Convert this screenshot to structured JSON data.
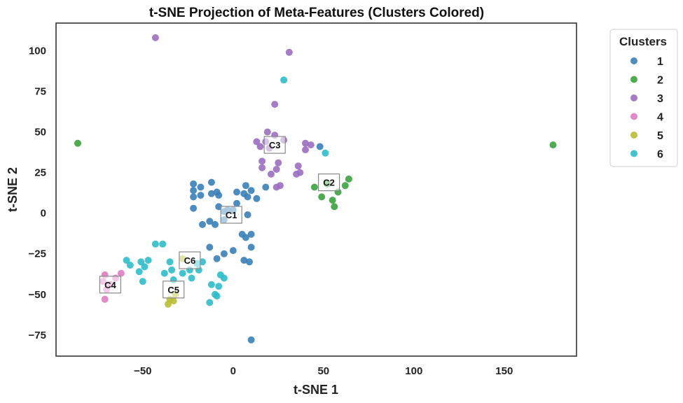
{
  "chart_data": {
    "type": "scatter",
    "title": "t-SNE Projection of Meta-Features (Clusters Colored)",
    "xlabel": "t-SNE 1",
    "ylabel": "t-SNE 2",
    "xlim": [
      -98,
      190
    ],
    "ylim": [
      -88,
      117
    ],
    "xticks": [
      -50,
      0,
      50,
      100,
      150
    ],
    "yticks": [
      -75,
      -50,
      -25,
      0,
      25,
      50,
      75,
      100
    ],
    "grid": false,
    "legend": {
      "title": "Clusters",
      "position": "outside-top-right"
    },
    "series": [
      {
        "name": "1",
        "color": "#3a7fb8",
        "points": [
          [
            -22,
            18
          ],
          [
            -22,
            14
          ],
          [
            -22,
            10
          ],
          [
            -22,
            3
          ],
          [
            -18,
            16
          ],
          [
            -18,
            11
          ],
          [
            -12,
            19
          ],
          [
            -12,
            12
          ],
          [
            -9,
            13
          ],
          [
            -8,
            11
          ],
          [
            -8,
            4
          ],
          [
            -17,
            -7
          ],
          [
            -13,
            -5
          ],
          [
            -10,
            -7
          ],
          [
            -5,
            1
          ],
          [
            -5,
            -4
          ],
          [
            -3,
            2
          ],
          [
            0,
            2
          ],
          [
            2,
            13
          ],
          [
            2,
            6
          ],
          [
            6,
            12
          ],
          [
            7,
            17
          ],
          [
            8,
            10
          ],
          [
            10,
            14
          ],
          [
            13,
            9
          ],
          [
            8,
            -1
          ],
          [
            5,
            -13
          ],
          [
            7,
            -15
          ],
          [
            10,
            -13
          ],
          [
            10,
            -21
          ],
          [
            -13,
            -21
          ],
          [
            -9,
            -28
          ],
          [
            -5,
            -25
          ],
          [
            0,
            -23
          ],
          [
            6,
            -29
          ],
          [
            9,
            -30
          ],
          [
            10,
            -78
          ],
          [
            18,
            16
          ],
          [
            48,
            41
          ]
        ]
      },
      {
        "name": "2",
        "color": "#3aa23e",
        "points": [
          [
            -86,
            43
          ],
          [
            45,
            16
          ],
          [
            49,
            10
          ],
          [
            52,
            18
          ],
          [
            55,
            8
          ],
          [
            56,
            4
          ],
          [
            58,
            13
          ],
          [
            62,
            17
          ],
          [
            64,
            21
          ],
          [
            177,
            42
          ]
        ]
      },
      {
        "name": "3",
        "color": "#9b6fc1",
        "points": [
          [
            -43,
            108
          ],
          [
            31,
            99
          ],
          [
            23,
            67
          ],
          [
            13,
            44
          ],
          [
            15,
            41
          ],
          [
            16,
            32
          ],
          [
            16,
            28
          ],
          [
            18,
            44
          ],
          [
            19,
            50
          ],
          [
            20,
            40
          ],
          [
            21,
            24
          ],
          [
            23,
            48
          ],
          [
            24,
            27
          ],
          [
            24,
            16
          ],
          [
            25,
            31
          ],
          [
            26,
            17
          ],
          [
            28,
            45
          ],
          [
            35,
            24
          ],
          [
            36,
            29
          ],
          [
            37,
            25
          ],
          [
            40,
            43
          ],
          [
            40,
            39
          ],
          [
            43,
            42
          ]
        ]
      },
      {
        "name": "4",
        "color": "#e07cc4",
        "points": [
          [
            -71,
            -38
          ],
          [
            -72,
            -42
          ],
          [
            -70,
            -47
          ],
          [
            -71,
            -53
          ],
          [
            -68,
            -44
          ],
          [
            -65,
            -40
          ],
          [
            -62,
            -37
          ]
        ]
      },
      {
        "name": "5",
        "color": "#b8bd34",
        "points": [
          [
            -28,
            -28
          ],
          [
            -35,
            -53
          ],
          [
            -36,
            -56
          ],
          [
            -33,
            -54
          ],
          [
            -32,
            -50
          ]
        ]
      },
      {
        "name": "6",
        "color": "#2dbcc9",
        "points": [
          [
            28,
            82
          ],
          [
            51,
            37
          ],
          [
            -59,
            -29
          ],
          [
            -57,
            -32
          ],
          [
            -52,
            -36
          ],
          [
            -51,
            -30
          ],
          [
            -49,
            -33
          ],
          [
            -47,
            -29
          ],
          [
            -50,
            -42
          ],
          [
            -43,
            -19
          ],
          [
            -39,
            -19
          ],
          [
            -38,
            -37
          ],
          [
            -35,
            -30
          ],
          [
            -34,
            -35
          ],
          [
            -33,
            -41
          ],
          [
            -28,
            -37
          ],
          [
            -24,
            -35
          ],
          [
            -23,
            -40
          ],
          [
            -20,
            -31
          ],
          [
            -19,
            -35
          ],
          [
            -17,
            -30
          ],
          [
            -12,
            -44
          ],
          [
            -8,
            -45
          ],
          [
            -10,
            -50
          ],
          [
            -7,
            -38
          ],
          [
            -5,
            -40
          ],
          [
            -13,
            -55
          ],
          [
            -9,
            -51
          ]
        ]
      }
    ],
    "centroids": [
      {
        "label": "C1",
        "x": -1,
        "y": -1
      },
      {
        "label": "C2",
        "x": 53,
        "y": 19
      },
      {
        "label": "C3",
        "x": 23,
        "y": 42
      },
      {
        "label": "C4",
        "x": -68,
        "y": -44
      },
      {
        "label": "C5",
        "x": -33,
        "y": -47
      },
      {
        "label": "C6",
        "x": -24,
        "y": -29
      }
    ]
  }
}
